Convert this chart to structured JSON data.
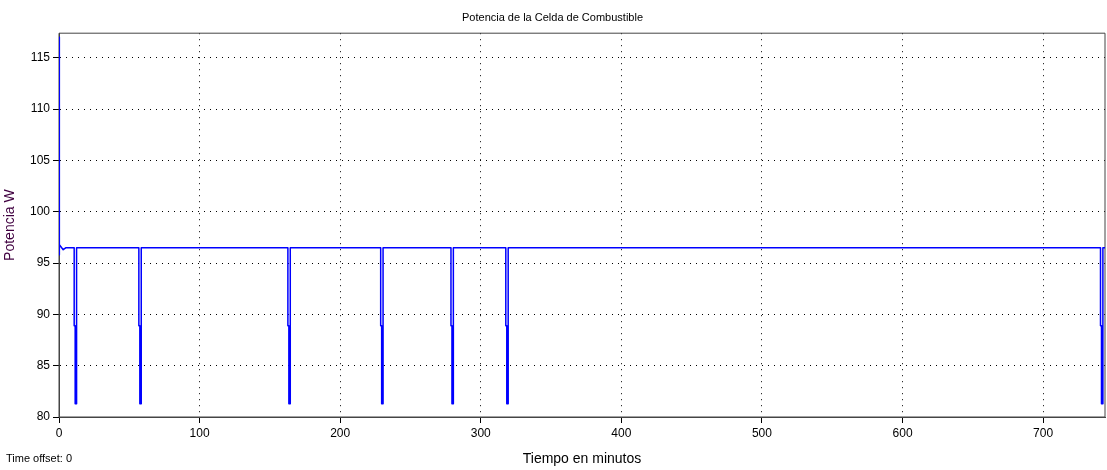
{
  "chart_data": {
    "type": "line",
    "title": "Potencia de la Celda de Combustible",
    "xlabel": "Tiempo en minutos",
    "ylabel": "Potencia W",
    "x": [
      0,
      0,
      0.5,
      3,
      5,
      10.8,
      10.8,
      11.5,
      11.5,
      12.5,
      12.5,
      56.8,
      56.8,
      57.5,
      57.5,
      58.5,
      58.5,
      162.8,
      162.8,
      163.5,
      163.5,
      164.5,
      164.5,
      228.8,
      228.8,
      229.5,
      229.5,
      230.5,
      230.5,
      278.8,
      278.8,
      279.5,
      279.5,
      280.5,
      280.5,
      317.8,
      317.8,
      318.5,
      318.5,
      319.5,
      319.5,
      740.8,
      740.8,
      741.5,
      741.5,
      742.5,
      742.5,
      744
    ],
    "series": [
      {
        "color": "#0000ff",
        "values": [
          117,
          95.8,
          96.8,
          96.3,
          96.5,
          96.5,
          88.9,
          88.9,
          81.3,
          81.3,
          96.5,
          96.5,
          88.9,
          88.9,
          81.3,
          81.3,
          96.5,
          96.5,
          88.9,
          88.9,
          81.3,
          81.3,
          96.5,
          96.5,
          88.9,
          88.9,
          81.3,
          81.3,
          96.5,
          96.5,
          88.9,
          88.9,
          81.3,
          81.3,
          96.5,
          96.5,
          88.9,
          88.9,
          81.3,
          81.3,
          96.5,
          96.5,
          88.9,
          88.9,
          81.3,
          81.3,
          96.5,
          96.5
        ]
      }
    ],
    "xlim": [
      0,
      744
    ],
    "xticks": [
      0,
      100,
      200,
      300,
      400,
      500,
      600,
      700
    ],
    "ylim": [
      80,
      117.4
    ],
    "yticks": [
      80,
      85,
      90,
      95,
      100,
      105,
      110,
      115
    ],
    "grid": true,
    "line_style": "solid",
    "marker": "none",
    "legend": false,
    "annotations": [
      "Time offset:  0"
    ]
  }
}
